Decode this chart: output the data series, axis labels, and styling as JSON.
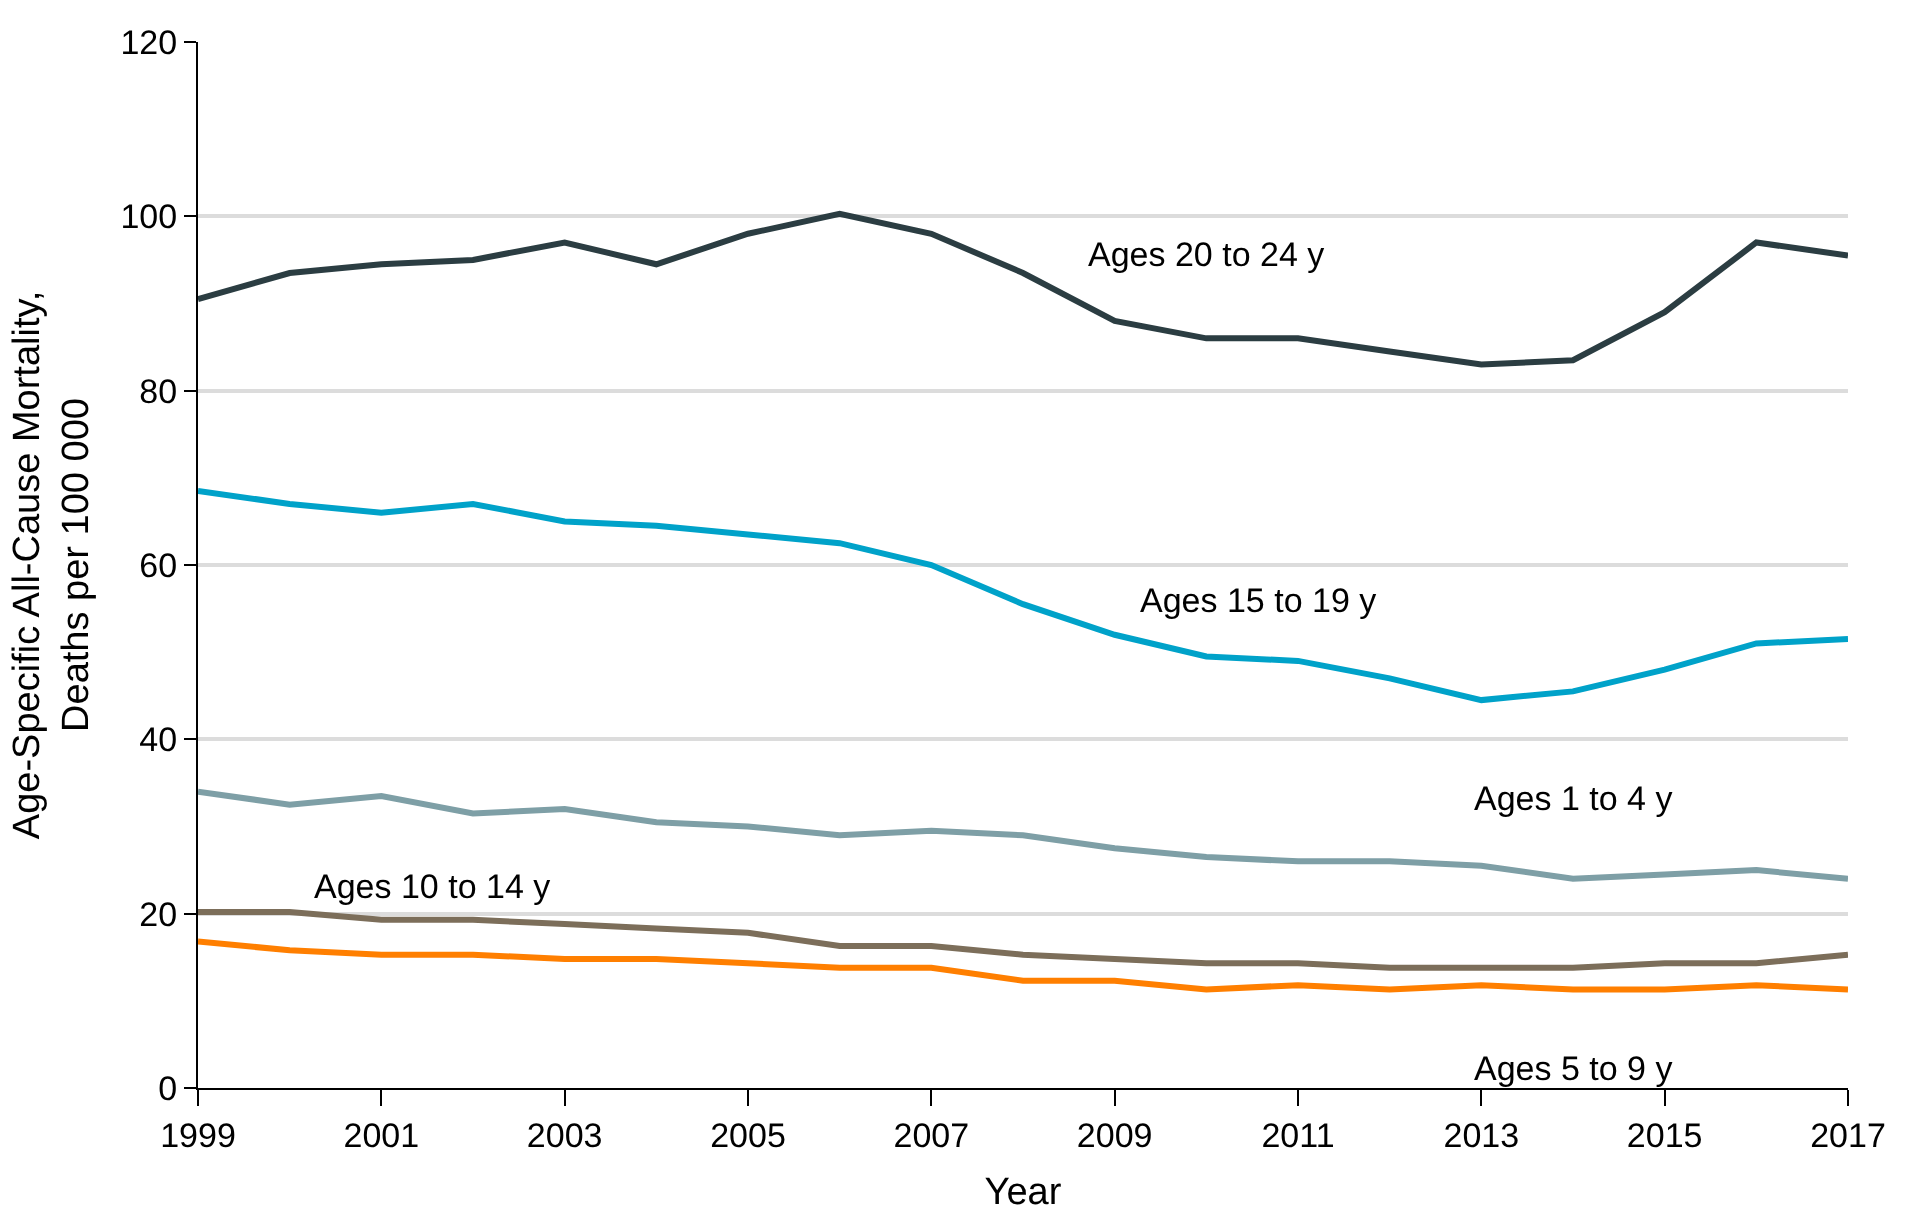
{
  "chart_data": {
    "type": "line",
    "xlabel": "Year",
    "ylabel": "Age-Specific All-Cause Mortality,\nDeaths per 100 000",
    "x": [
      1999,
      2000,
      2001,
      2002,
      2003,
      2004,
      2005,
      2006,
      2007,
      2008,
      2009,
      2010,
      2011,
      2012,
      2013,
      2014,
      2015,
      2016,
      2017
    ],
    "series": [
      {
        "name": "Ages 20 to 24 y",
        "color": "#2b3d42",
        "values": [
          90.5,
          93.5,
          94.5,
          95,
          97,
          94.5,
          98,
          100.3,
          98,
          93.5,
          88,
          86,
          86,
          84.5,
          83,
          83.5,
          89,
          97,
          95.5
        ]
      },
      {
        "name": "Ages 15 to 19 y",
        "color": "#00a2c9",
        "values": [
          68.5,
          67,
          66,
          67,
          65,
          64.5,
          63.5,
          62.5,
          60,
          55.5,
          52,
          49.5,
          49,
          47,
          44.5,
          45.5,
          48,
          51,
          51.5
        ]
      },
      {
        "name": "Ages 1 to 4 y",
        "color": "#7e9fa6",
        "values": [
          34,
          32.5,
          33.5,
          31.5,
          32,
          30.5,
          30,
          29,
          29.5,
          29,
          27.5,
          26.5,
          26,
          26,
          25.5,
          24,
          24.5,
          25,
          24
        ]
      },
      {
        "name": "Ages 10 to 14 y",
        "color": "#7c6e5a",
        "values": [
          20.2,
          20.2,
          19.3,
          19.3,
          18.8,
          18.3,
          17.8,
          16.3,
          16.3,
          15.3,
          14.8,
          14.3,
          14.3,
          13.8,
          13.8,
          13.8,
          14.3,
          14.3,
          15.3
        ]
      },
      {
        "name": "Ages 5 to 9 y",
        "color": "#ff7f00",
        "values": [
          16.8,
          15.8,
          15.3,
          15.3,
          14.8,
          14.8,
          14.3,
          13.8,
          13.8,
          12.3,
          12.3,
          11.3,
          11.8,
          11.3,
          11.8,
          11.3,
          11.3,
          11.8,
          11.3
        ]
      }
    ],
    "xlim": [
      1999,
      2017
    ],
    "xticks": [
      1999,
      2001,
      2003,
      2005,
      2007,
      2009,
      2011,
      2013,
      2015,
      2017
    ],
    "ylim": [
      0,
      120
    ],
    "yticks": [
      0,
      20,
      40,
      60,
      80,
      100,
      120
    ],
    "grid": "y",
    "legend": false,
    "marker": "none",
    "line_style": "solid"
  }
}
